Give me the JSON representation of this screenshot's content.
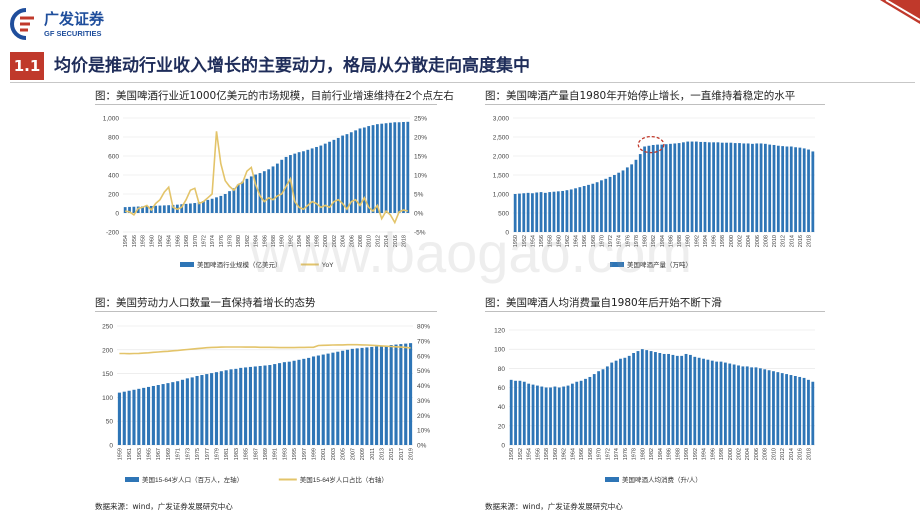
{
  "header": {
    "logo_cn": "广发证券",
    "logo_en": "GF SECURITIES",
    "section_num": "1.1",
    "section_title": "均价是推动行业收入增长的主要动力，格局从分散走向高度集中"
  },
  "colors": {
    "bar": "#2e75b6",
    "line": "#e3c46a",
    "accent": "#c0392b",
    "navy": "#1f2d5a"
  },
  "watermark": "www.baogao.com",
  "sources": [
    "数据来源：wind，广发证券发展研究中心",
    "数据来源：wind，广发证券发展研究中心"
  ],
  "chart_data": [
    {
      "id": "c1",
      "type": "bar",
      "title": "图：美国啤酒行业近1000亿美元的市场规模，目前行业增速维持在2个点左右",
      "categories": [
        "1954",
        "1955",
        "1956",
        "1957",
        "1958",
        "1959",
        "1960",
        "1961",
        "1962",
        "1963",
        "1964",
        "1965",
        "1966",
        "1967",
        "1968",
        "1969",
        "1970",
        "1971",
        "1972",
        "1973",
        "1974",
        "1975",
        "1976",
        "1977",
        "1978",
        "1979",
        "1980",
        "1981",
        "1982",
        "1983",
        "1984",
        "1985",
        "1986",
        "1987",
        "1988",
        "1989",
        "1990",
        "1991",
        "1992",
        "1993",
        "1994",
        "1995",
        "1996",
        "1997",
        "1998",
        "1999",
        "2000",
        "2001",
        "2002",
        "2003",
        "2004",
        "2005",
        "2006",
        "2007",
        "2008",
        "2009",
        "2010",
        "2011",
        "2012",
        "2013",
        "2014",
        "2015",
        "2016",
        "2017",
        "2018",
        "2019"
      ],
      "tick_labels": [
        "1954",
        "1956",
        "1958",
        "1960",
        "1962",
        "1964",
        "1966",
        "1968",
        "1970",
        "1972",
        "1974",
        "1976",
        "1978",
        "1980",
        "1982",
        "1984",
        "1986",
        "1988",
        "1990",
        "1992",
        "1994",
        "1996",
        "1998",
        "2000",
        "2002",
        "2004",
        "2006",
        "2008",
        "2010",
        "2012",
        "2014",
        "2016",
        "2018"
      ],
      "series": [
        {
          "name": "美国啤酒行业规模（亿美元）",
          "kind": "bar",
          "axis": "left",
          "values": [
            62,
            64,
            66,
            68,
            70,
            72,
            74,
            76,
            78,
            80,
            82,
            85,
            88,
            92,
            96,
            100,
            105,
            115,
            125,
            138,
            150,
            165,
            180,
            200,
            230,
            260,
            300,
            330,
            360,
            385,
            405,
            420,
            440,
            460,
            490,
            520,
            560,
            590,
            610,
            625,
            640,
            650,
            665,
            680,
            695,
            710,
            730,
            750,
            770,
            790,
            815,
            830,
            850,
            870,
            890,
            900,
            915,
            925,
            935,
            940,
            945,
            950,
            955,
            955,
            958,
            960
          ]
        },
        {
          "name": "YoY",
          "kind": "line",
          "axis": "right",
          "values": [
            0.5,
            0.3,
            -0.5,
            1.2,
            1.5,
            2.0,
            0.8,
            2.5,
            3.5,
            5.5,
            6.8,
            1.5,
            1.0,
            1.5,
            3.5,
            6.0,
            6.5,
            2.5,
            3.0,
            4.0,
            5.0,
            21.5,
            13.0,
            8.5,
            7.0,
            6.0,
            7.5,
            8.0,
            11.0,
            12.0,
            7.5,
            4.5,
            3.0,
            4.0,
            3.5,
            4.5,
            5.0,
            7.0,
            9.0,
            3.0,
            1.5,
            1.0,
            2.0,
            3.0,
            2.5,
            1.5,
            2.0,
            1.5,
            3.0,
            3.5,
            2.5,
            1.0,
            3.0,
            3.5,
            2.0,
            4.0,
            1.5,
            0.5,
            2.0,
            -1.5,
            0.5,
            -0.5,
            -2.5,
            0.3,
            0.8,
            0.5
          ]
        }
      ],
      "ylim_left": [
        -200,
        1000
      ],
      "yticks_left": [
        "-200",
        "0",
        "200",
        "400",
        "600",
        "800",
        "1,000"
      ],
      "ylim_right": [
        -5,
        25
      ],
      "yticks_right": [
        "-5%",
        "0%",
        "5%",
        "10%",
        "15%",
        "20%",
        "25%"
      ],
      "legend": [
        "美国啤酒行业规模（亿美元）",
        "YoY"
      ]
    },
    {
      "id": "c2",
      "type": "bar",
      "title": "图：美国啤酒产量自1980年开始停止增长，一直维持着稳定的水平",
      "categories": [
        "1950",
        "1951",
        "1952",
        "1953",
        "1954",
        "1955",
        "1956",
        "1957",
        "1958",
        "1959",
        "1960",
        "1961",
        "1962",
        "1963",
        "1964",
        "1965",
        "1966",
        "1967",
        "1968",
        "1969",
        "1970",
        "1971",
        "1972",
        "1973",
        "1974",
        "1975",
        "1976",
        "1977",
        "1978",
        "1979",
        "1980",
        "1981",
        "1982",
        "1983",
        "1984",
        "1985",
        "1986",
        "1987",
        "1988",
        "1989",
        "1990",
        "1991",
        "1992",
        "1993",
        "1994",
        "1995",
        "1996",
        "1997",
        "1998",
        "1999",
        "2000",
        "2001",
        "2002",
        "2003",
        "2004",
        "2005",
        "2006",
        "2007",
        "2008",
        "2009",
        "2010",
        "2011",
        "2012",
        "2013",
        "2014",
        "2015",
        "2016",
        "2017",
        "2018",
        "2019"
      ],
      "tick_labels": [
        "1950",
        "1952",
        "1954",
        "1956",
        "1958",
        "1960",
        "1962",
        "1964",
        "1966",
        "1968",
        "1970",
        "1972",
        "1974",
        "1976",
        "1978",
        "1980",
        "1982",
        "1984",
        "1986",
        "1988",
        "1990",
        "1992",
        "1994",
        "1996",
        "1998",
        "2000",
        "2002",
        "2004",
        "2006",
        "2008",
        "2010",
        "2012",
        "2014",
        "2016",
        "2018"
      ],
      "series": [
        {
          "name": "美国啤酒产量（万吨）",
          "kind": "bar",
          "axis": "left",
          "values": [
            1000,
            1010,
            1020,
            1030,
            1020,
            1040,
            1050,
            1030,
            1050,
            1060,
            1070,
            1080,
            1100,
            1120,
            1150,
            1180,
            1210,
            1240,
            1270,
            1310,
            1360,
            1400,
            1450,
            1500,
            1560,
            1620,
            1700,
            1780,
            1900,
            2050,
            2250,
            2270,
            2290,
            2300,
            2300,
            2310,
            2320,
            2330,
            2340,
            2360,
            2380,
            2380,
            2380,
            2370,
            2370,
            2360,
            2360,
            2360,
            2350,
            2350,
            2350,
            2340,
            2340,
            2330,
            2330,
            2320,
            2330,
            2330,
            2320,
            2300,
            2290,
            2270,
            2260,
            2250,
            2250,
            2230,
            2220,
            2200,
            2170,
            2120
          ]
        }
      ],
      "ylim_left": [
        0,
        3000
      ],
      "yticks_left": [
        "0",
        "500",
        "1,000",
        "1,500",
        "2,000",
        "2,500",
        "3,000"
      ],
      "legend": [
        "美国啤酒产量（万吨）"
      ],
      "highlight": "1980-1983"
    },
    {
      "id": "c3",
      "type": "bar",
      "title": "图：美国劳动力人口数量一直保持着增长的态势",
      "categories": [
        "1959",
        "1960",
        "1961",
        "1962",
        "1963",
        "1964",
        "1965",
        "1966",
        "1967",
        "1968",
        "1969",
        "1970",
        "1971",
        "1972",
        "1973",
        "1974",
        "1975",
        "1976",
        "1977",
        "1978",
        "1979",
        "1980",
        "1981",
        "1982",
        "1983",
        "1984",
        "1985",
        "1986",
        "1987",
        "1988",
        "1989",
        "1990",
        "1991",
        "1992",
        "1993",
        "1994",
        "1995",
        "1996",
        "1997",
        "1998",
        "1999",
        "2000",
        "2001",
        "2002",
        "2003",
        "2004",
        "2005",
        "2006",
        "2007",
        "2008",
        "2009",
        "2010",
        "2011",
        "2012",
        "2013",
        "2014",
        "2015",
        "2016",
        "2017",
        "2018",
        "2019"
      ],
      "tick_labels": [
        "1959",
        "1961",
        "1963",
        "1965",
        "1967",
        "1969",
        "1971",
        "1973",
        "1975",
        "1977",
        "1979",
        "1981",
        "1983",
        "1985",
        "1987",
        "1989",
        "1991",
        "1993",
        "1995",
        "1997",
        "1999",
        "2001",
        "2003",
        "2005",
        "2007",
        "2009",
        "2011",
        "2013",
        "2015",
        "2017",
        "2019"
      ],
      "series": [
        {
          "name": "美国15-64岁人口（百万人，左轴）",
          "kind": "bar",
          "axis": "left",
          "values": [
            110,
            112,
            114,
            116,
            118,
            120,
            122,
            124,
            126,
            128,
            130,
            132,
            134,
            137,
            140,
            142,
            145,
            147,
            149,
            151,
            153,
            155,
            157,
            159,
            160,
            162,
            163,
            164,
            165,
            166,
            167,
            168,
            170,
            172,
            174,
            175,
            177,
            179,
            181,
            183,
            186,
            188,
            190,
            192,
            194,
            196,
            198,
            200,
            202,
            203,
            204,
            205,
            206,
            207,
            208,
            209,
            210,
            211,
            212,
            213,
            214
          ]
        },
        {
          "name": "美国15-64岁人口占比（右轴）",
          "kind": "line",
          "axis": "right",
          "values": [
            61.5,
            61.5,
            61.4,
            61.5,
            61.6,
            61.8,
            62.0,
            62.3,
            62.5,
            62.8,
            63.0,
            63.3,
            63.6,
            63.9,
            64.2,
            64.5,
            64.8,
            65.1,
            65.4,
            65.6,
            65.7,
            65.8,
            65.9,
            65.9,
            65.9,
            65.9,
            65.8,
            65.8,
            65.8,
            65.7,
            65.7,
            65.7,
            65.6,
            65.5,
            65.5,
            65.5,
            65.5,
            65.6,
            65.6,
            65.7,
            65.7,
            66.9,
            67.0,
            67.1,
            67.2,
            67.3,
            67.3,
            67.4,
            67.4,
            67.4,
            67.3,
            67.2,
            67.0,
            66.8,
            66.6,
            66.4,
            66.2,
            66.0,
            65.8,
            65.6,
            65.3
          ]
        }
      ],
      "ylim_left": [
        0,
        250
      ],
      "yticks_left": [
        "0",
        "50",
        "100",
        "150",
        "200",
        "250"
      ],
      "ylim_right": [
        0,
        80
      ],
      "yticks_right": [
        "0%",
        "10%",
        "20%",
        "30%",
        "40%",
        "50%",
        "60%",
        "70%",
        "80%"
      ],
      "legend": [
        "美国15-64岁人口（百万人，左轴）",
        "美国15-64岁人口占比（右轴）"
      ]
    },
    {
      "id": "c4",
      "type": "bar",
      "title": "图：美国啤酒人均消费量自1980年后开始不断下滑",
      "categories": [
        "1950",
        "1951",
        "1952",
        "1953",
        "1954",
        "1955",
        "1956",
        "1957",
        "1958",
        "1959",
        "1960",
        "1961",
        "1962",
        "1963",
        "1964",
        "1965",
        "1966",
        "1967",
        "1968",
        "1969",
        "1970",
        "1971",
        "1972",
        "1973",
        "1974",
        "1975",
        "1976",
        "1977",
        "1978",
        "1979",
        "1980",
        "1981",
        "1982",
        "1983",
        "1984",
        "1985",
        "1986",
        "1987",
        "1988",
        "1989",
        "1990",
        "1991",
        "1992",
        "1993",
        "1994",
        "1995",
        "1996",
        "1997",
        "1998",
        "1999",
        "2000",
        "2001",
        "2002",
        "2003",
        "2004",
        "2005",
        "2006",
        "2007",
        "2008",
        "2009",
        "2010",
        "2011",
        "2012",
        "2013",
        "2014",
        "2015",
        "2016",
        "2017",
        "2018",
        "2019"
      ],
      "tick_labels": [
        "1950",
        "1952",
        "1954",
        "1956",
        "1958",
        "1960",
        "1962",
        "1964",
        "1966",
        "1968",
        "1970",
        "1972",
        "1974",
        "1976",
        "1978",
        "1980",
        "1982",
        "1984",
        "1986",
        "1988",
        "1990",
        "1992",
        "1994",
        "1996",
        "1998",
        "2000",
        "2002",
        "2004",
        "2006",
        "2008",
        "2010",
        "2012",
        "2014",
        "2016",
        "2018"
      ],
      "series": [
        {
          "name": "美国啤酒人均消费（升/人）",
          "kind": "bar",
          "axis": "left",
          "values": [
            68,
            67,
            67,
            66,
            64,
            63,
            62,
            61,
            60,
            60,
            61,
            60,
            61,
            62,
            64,
            66,
            67,
            69,
            71,
            74,
            77,
            79,
            82,
            86,
            88,
            90,
            91,
            93,
            96,
            98,
            100,
            99,
            98,
            97,
            96,
            95,
            95,
            94,
            93,
            93,
            95,
            94,
            92,
            91,
            90,
            89,
            88,
            87,
            87,
            86,
            85,
            84,
            83,
            82,
            82,
            81,
            81,
            80,
            79,
            78,
            77,
            76,
            75,
            74,
            73,
            72,
            71,
            70,
            68,
            66
          ]
        }
      ],
      "ylim_left": [
        0,
        120
      ],
      "yticks_left": [
        "0",
        "20",
        "40",
        "60",
        "80",
        "100",
        "120"
      ],
      "legend": [
        "美国啤酒人均消费（升/人）"
      ]
    }
  ]
}
